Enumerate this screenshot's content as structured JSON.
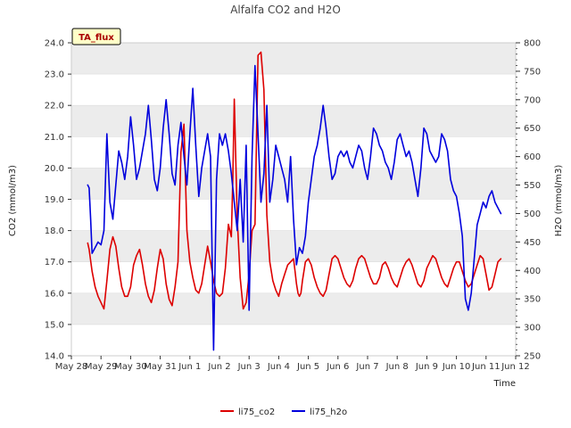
{
  "chart_data": {
    "type": "line",
    "title": "Alfalfa CO2 and H2O",
    "xlabel": "Time",
    "ylabel_left": "CO2 (mmol/m3)",
    "ylabel_right": "H2O (mmol/m3)",
    "badge": "TA_flux",
    "x_tick_labels": [
      "May 28",
      "May 29",
      "May 30",
      "May 31",
      "Jun 1",
      "Jun 2",
      "Jun 3",
      "Jun 4",
      "Jun 5",
      "Jun 6",
      "Jun 7",
      "Jun 8",
      "Jun 9",
      "Jun 10",
      "Jun 11",
      "Jun 12"
    ],
    "xlim_days": [
      0,
      15
    ],
    "ylim_left": [
      14.0,
      24.0
    ],
    "yticks_left": [
      "14.0",
      "15.0",
      "16.0",
      "17.0",
      "18.0",
      "19.0",
      "20.0",
      "21.0",
      "22.0",
      "23.0",
      "24.0"
    ],
    "ylim_right": [
      250,
      800
    ],
    "yticks_right": [
      "250",
      "300",
      "350",
      "400",
      "450",
      "500",
      "550",
      "600",
      "650",
      "700",
      "750",
      "800"
    ],
    "grid": "horizontal bands",
    "legend_position": "bottom-center",
    "series": [
      {
        "name": "li75_co2",
        "axis": "left",
        "color": "#dd0000",
        "x": [
          0.55,
          0.6,
          0.7,
          0.8,
          0.9,
          1.0,
          1.1,
          1.2,
          1.3,
          1.4,
          1.5,
          1.6,
          1.7,
          1.8,
          1.9,
          2.0,
          2.1,
          2.2,
          2.3,
          2.4,
          2.5,
          2.6,
          2.7,
          2.8,
          2.9,
          3.0,
          3.1,
          3.2,
          3.3,
          3.4,
          3.5,
          3.6,
          3.7,
          3.8,
          3.9,
          4.0,
          4.1,
          4.2,
          4.3,
          4.4,
          4.5,
          4.6,
          4.7,
          4.8,
          4.9,
          5.0,
          5.1,
          5.2,
          5.3,
          5.4,
          5.45,
          5.5,
          5.6,
          5.7,
          5.8,
          5.9,
          6.0,
          6.1,
          6.2,
          6.3,
          6.4,
          6.5,
          6.6,
          6.7,
          6.8,
          6.9,
          7.0,
          7.1,
          7.2,
          7.3,
          7.4,
          7.5,
          7.55,
          7.6,
          7.65,
          7.7,
          7.75,
          7.8,
          7.9,
          8.0,
          8.1,
          8.2,
          8.3,
          8.4,
          8.5,
          8.6,
          8.7,
          8.8,
          8.9,
          9.0,
          9.1,
          9.2,
          9.3,
          9.4,
          9.5,
          9.6,
          9.7,
          9.8,
          9.9,
          10.0,
          10.1,
          10.2,
          10.3,
          10.4,
          10.5,
          10.6,
          10.7,
          10.8,
          10.9,
          11.0,
          11.1,
          11.2,
          11.3,
          11.4,
          11.5,
          11.6,
          11.7,
          11.8,
          11.9,
          12.0,
          12.1,
          12.2,
          12.3,
          12.4,
          12.5,
          12.6,
          12.7,
          12.8,
          12.9,
          13.0,
          13.1,
          13.2,
          13.3,
          13.4,
          13.5,
          13.6,
          13.7,
          13.8,
          13.9,
          14.0,
          14.1,
          14.2,
          14.3,
          14.4,
          14.5
        ],
        "y": [
          17.6,
          17.4,
          16.7,
          16.2,
          15.9,
          15.7,
          15.5,
          16.4,
          17.4,
          17.8,
          17.5,
          16.8,
          16.2,
          15.9,
          15.9,
          16.2,
          16.9,
          17.2,
          17.4,
          16.9,
          16.3,
          15.9,
          15.7,
          16.1,
          16.8,
          17.4,
          17.1,
          16.3,
          15.8,
          15.6,
          16.2,
          17.0,
          20.5,
          21.4,
          18.0,
          17.0,
          16.5,
          16.1,
          16.0,
          16.3,
          16.9,
          17.5,
          17.0,
          16.4,
          16.0,
          15.9,
          16.0,
          16.8,
          18.2,
          17.8,
          19.6,
          22.2,
          18.4,
          16.5,
          15.5,
          15.7,
          16.6,
          18.0,
          18.2,
          23.6,
          23.7,
          22.5,
          18.5,
          17.0,
          16.4,
          16.1,
          15.9,
          16.3,
          16.6,
          16.9,
          17.0,
          17.1,
          16.7,
          16.3,
          16.0,
          15.9,
          16.0,
          16.4,
          17.0,
          17.1,
          16.9,
          16.5,
          16.2,
          16.0,
          15.9,
          16.1,
          16.6,
          17.1,
          17.2,
          17.1,
          16.8,
          16.5,
          16.3,
          16.2,
          16.4,
          16.8,
          17.1,
          17.2,
          17.1,
          16.8,
          16.5,
          16.3,
          16.3,
          16.5,
          16.9,
          17.0,
          16.8,
          16.5,
          16.3,
          16.2,
          16.5,
          16.8,
          17.0,
          17.1,
          16.9,
          16.6,
          16.3,
          16.2,
          16.4,
          16.8,
          17.0,
          17.2,
          17.1,
          16.8,
          16.5,
          16.3,
          16.2,
          16.5,
          16.8,
          17.0,
          17.0,
          16.7,
          16.4,
          16.2,
          16.3,
          16.6,
          16.9,
          17.2,
          17.1,
          16.6,
          16.1,
          16.2,
          16.6,
          17.0,
          17.1
        ]
      },
      {
        "name": "li75_h2o",
        "axis": "right",
        "color": "#0000dd",
        "x": [
          0.55,
          0.6,
          0.65,
          0.7,
          0.8,
          0.9,
          1.0,
          1.1,
          1.2,
          1.3,
          1.4,
          1.5,
          1.6,
          1.7,
          1.8,
          1.9,
          2.0,
          2.1,
          2.2,
          2.3,
          2.4,
          2.5,
          2.6,
          2.7,
          2.8,
          2.9,
          3.0,
          3.1,
          3.2,
          3.3,
          3.4,
          3.5,
          3.6,
          3.7,
          3.8,
          3.9,
          4.0,
          4.1,
          4.2,
          4.3,
          4.4,
          4.5,
          4.6,
          4.7,
          4.8,
          4.9,
          5.0,
          5.1,
          5.2,
          5.3,
          5.4,
          5.5,
          5.6,
          5.7,
          5.8,
          5.9,
          6.0,
          6.1,
          6.2,
          6.3,
          6.4,
          6.5,
          6.6,
          6.7,
          6.8,
          6.9,
          7.0,
          7.1,
          7.2,
          7.3,
          7.4,
          7.5,
          7.6,
          7.7,
          7.8,
          7.9,
          8.0,
          8.1,
          8.2,
          8.3,
          8.4,
          8.5,
          8.6,
          8.7,
          8.8,
          8.9,
          9.0,
          9.1,
          9.2,
          9.3,
          9.4,
          9.5,
          9.6,
          9.7,
          9.8,
          9.9,
          10.0,
          10.1,
          10.2,
          10.3,
          10.4,
          10.5,
          10.6,
          10.7,
          10.8,
          10.9,
          11.0,
          11.1,
          11.2,
          11.3,
          11.4,
          11.5,
          11.6,
          11.7,
          11.8,
          11.9,
          12.0,
          12.1,
          12.2,
          12.3,
          12.4,
          12.5,
          12.6,
          12.7,
          12.8,
          12.9,
          13.0,
          13.1,
          13.2,
          13.3,
          13.4,
          13.5,
          13.6,
          13.7,
          13.8,
          13.9,
          14.0,
          14.1,
          14.2,
          14.3,
          14.4,
          14.5
        ],
        "y": [
          550,
          545,
          490,
          430,
          440,
          450,
          445,
          470,
          640,
          520,
          490,
          550,
          610,
          590,
          560,
          600,
          670,
          620,
          560,
          580,
          610,
          640,
          690,
          630,
          560,
          540,
          580,
          650,
          700,
          640,
          570,
          550,
          620,
          660,
          600,
          550,
          640,
          720,
          620,
          530,
          580,
          610,
          640,
          600,
          260,
          560,
          640,
          620,
          640,
          610,
          570,
          520,
          470,
          560,
          450,
          620,
          330,
          600,
          760,
          640,
          520,
          570,
          690,
          520,
          560,
          620,
          600,
          580,
          560,
          520,
          600,
          490,
          410,
          440,
          430,
          460,
          520,
          560,
          600,
          620,
          650,
          690,
          650,
          600,
          560,
          570,
          600,
          610,
          600,
          610,
          590,
          580,
          600,
          620,
          610,
          580,
          560,
          600,
          650,
          640,
          620,
          610,
          590,
          580,
          560,
          590,
          630,
          640,
          620,
          600,
          610,
          590,
          560,
          530,
          580,
          650,
          640,
          610,
          600,
          590,
          600,
          640,
          630,
          610,
          560,
          540,
          530,
          500,
          460,
          350,
          330,
          360,
          420,
          480,
          500,
          520,
          510,
          530,
          540,
          520,
          510,
          500
        ]
      }
    ]
  }
}
